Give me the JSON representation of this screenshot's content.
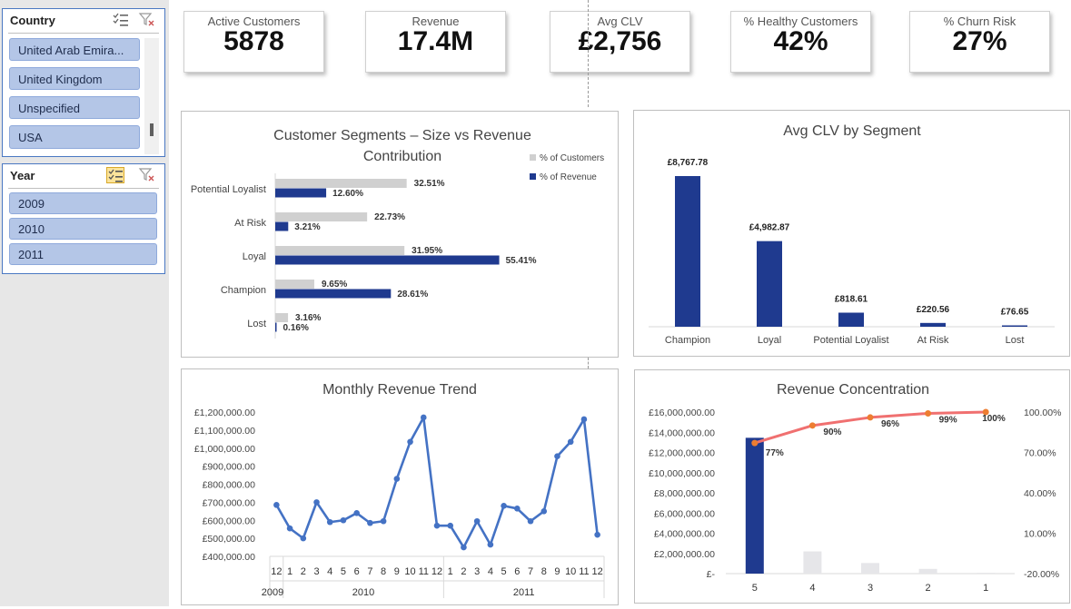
{
  "slicers": {
    "country": {
      "title": "Country",
      "items": [
        "United Arab Emira...",
        "United Kingdom",
        "Unspecified",
        "USA"
      ]
    },
    "year": {
      "title": "Year",
      "items": [
        "2009",
        "2010",
        "2011"
      ]
    }
  },
  "kpis": [
    {
      "label": "Active Customers",
      "value": "5878"
    },
    {
      "label": "Revenue",
      "value": "17.4M"
    },
    {
      "label": "Avg CLV",
      "value": "£2,756"
    },
    {
      "label": "% Healthy Customers",
      "value": "42%"
    },
    {
      "label": "% Churn Risk",
      "value": "27%"
    }
  ],
  "colors": {
    "navy": "#1f3a8f",
    "grey_bar": "#d0d0d0",
    "line_blue": "#4472c4",
    "pareto_line": "#f07070",
    "pareto_dot": "#ed7d31"
  },
  "chart_data": [
    {
      "type": "bar",
      "orientation": "horizontal",
      "title": "Customer Segments – Size vs Revenue Contribution",
      "categories": [
        "Potential Loyalist",
        "At Risk",
        "Loyal",
        "Champion",
        "Lost"
      ],
      "series": [
        {
          "name": "% of Customers",
          "values": [
            32.51,
            22.73,
            31.95,
            9.65,
            3.16
          ],
          "labels": [
            "32.51%",
            "22.73%",
            "31.95%",
            "9.65%",
            "3.16%"
          ]
        },
        {
          "name": "% of Revenue",
          "values": [
            12.6,
            3.21,
            55.41,
            28.61,
            0.16
          ],
          "labels": [
            "12.60%",
            "3.21%",
            "55.41%",
            "28.61%",
            "0.16%"
          ]
        }
      ],
      "legend": "top-right"
    },
    {
      "type": "bar",
      "title": "Avg CLV by Segment",
      "categories": [
        "Champion",
        "Loyal",
        "Potential Loyalist",
        "At Risk",
        "Lost"
      ],
      "values": [
        8767.78,
        4982.87,
        818.61,
        220.56,
        76.65
      ],
      "labels": [
        "£8,767.78",
        "£4,982.87",
        "£818.61",
        "£220.56",
        "£76.65"
      ]
    },
    {
      "type": "line",
      "title": "Monthly Revenue Trend",
      "x": [
        "12",
        "1",
        "2",
        "3",
        "4",
        "5",
        "6",
        "7",
        "8",
        "9",
        "10",
        "11",
        "12",
        "1",
        "2",
        "3",
        "4",
        "5",
        "6",
        "7",
        "8",
        "9",
        "10",
        "11",
        "12"
      ],
      "year_labels": [
        {
          "label": "2009",
          "start": 0,
          "end": 0
        },
        {
          "label": "2010",
          "start": 1,
          "end": 12
        },
        {
          "label": "2011",
          "start": 13,
          "end": 24
        }
      ],
      "values": [
        685000,
        555000,
        500000,
        700000,
        590000,
        600000,
        640000,
        585000,
        595000,
        830000,
        1035000,
        1170000,
        570000,
        570000,
        450000,
        595000,
        465000,
        680000,
        665000,
        595000,
        650000,
        955000,
        1035000,
        1160000,
        520000
      ],
      "y_ticks": [
        "£1,200,000.00",
        "£1,100,000.00",
        "£1,000,000.00",
        "£900,000.00",
        "£800,000.00",
        "£700,000.00",
        "£600,000.00",
        "£500,000.00",
        "£400,000.00"
      ],
      "ylim": [
        400000,
        1200000
      ]
    },
    {
      "type": "bar",
      "title": "Revenue Concentration",
      "categories": [
        "5",
        "4",
        "3",
        "2",
        "1"
      ],
      "values": [
        13450000,
        2200000,
        1050000,
        470000,
        80000
      ],
      "cumulative_percent": [
        77,
        90,
        96,
        99,
        100
      ],
      "cumulative_labels": [
        "77%",
        "90%",
        "96%",
        "99%",
        "100%"
      ],
      "y_ticks": [
        "£16,000,000.00",
        "£14,000,000.00",
        "£12,000,000.00",
        "£10,000,000.00",
        "£8,000,000.00",
        "£6,000,000.00",
        "£4,000,000.00",
        "£2,000,000.00",
        "£-"
      ],
      "y2_ticks": [
        "100.00%",
        "70.00%",
        "40.00%",
        "10.00%",
        "-20.00%"
      ],
      "ylim": [
        0,
        16000000
      ],
      "y2lim": [
        -20,
        100
      ]
    }
  ]
}
